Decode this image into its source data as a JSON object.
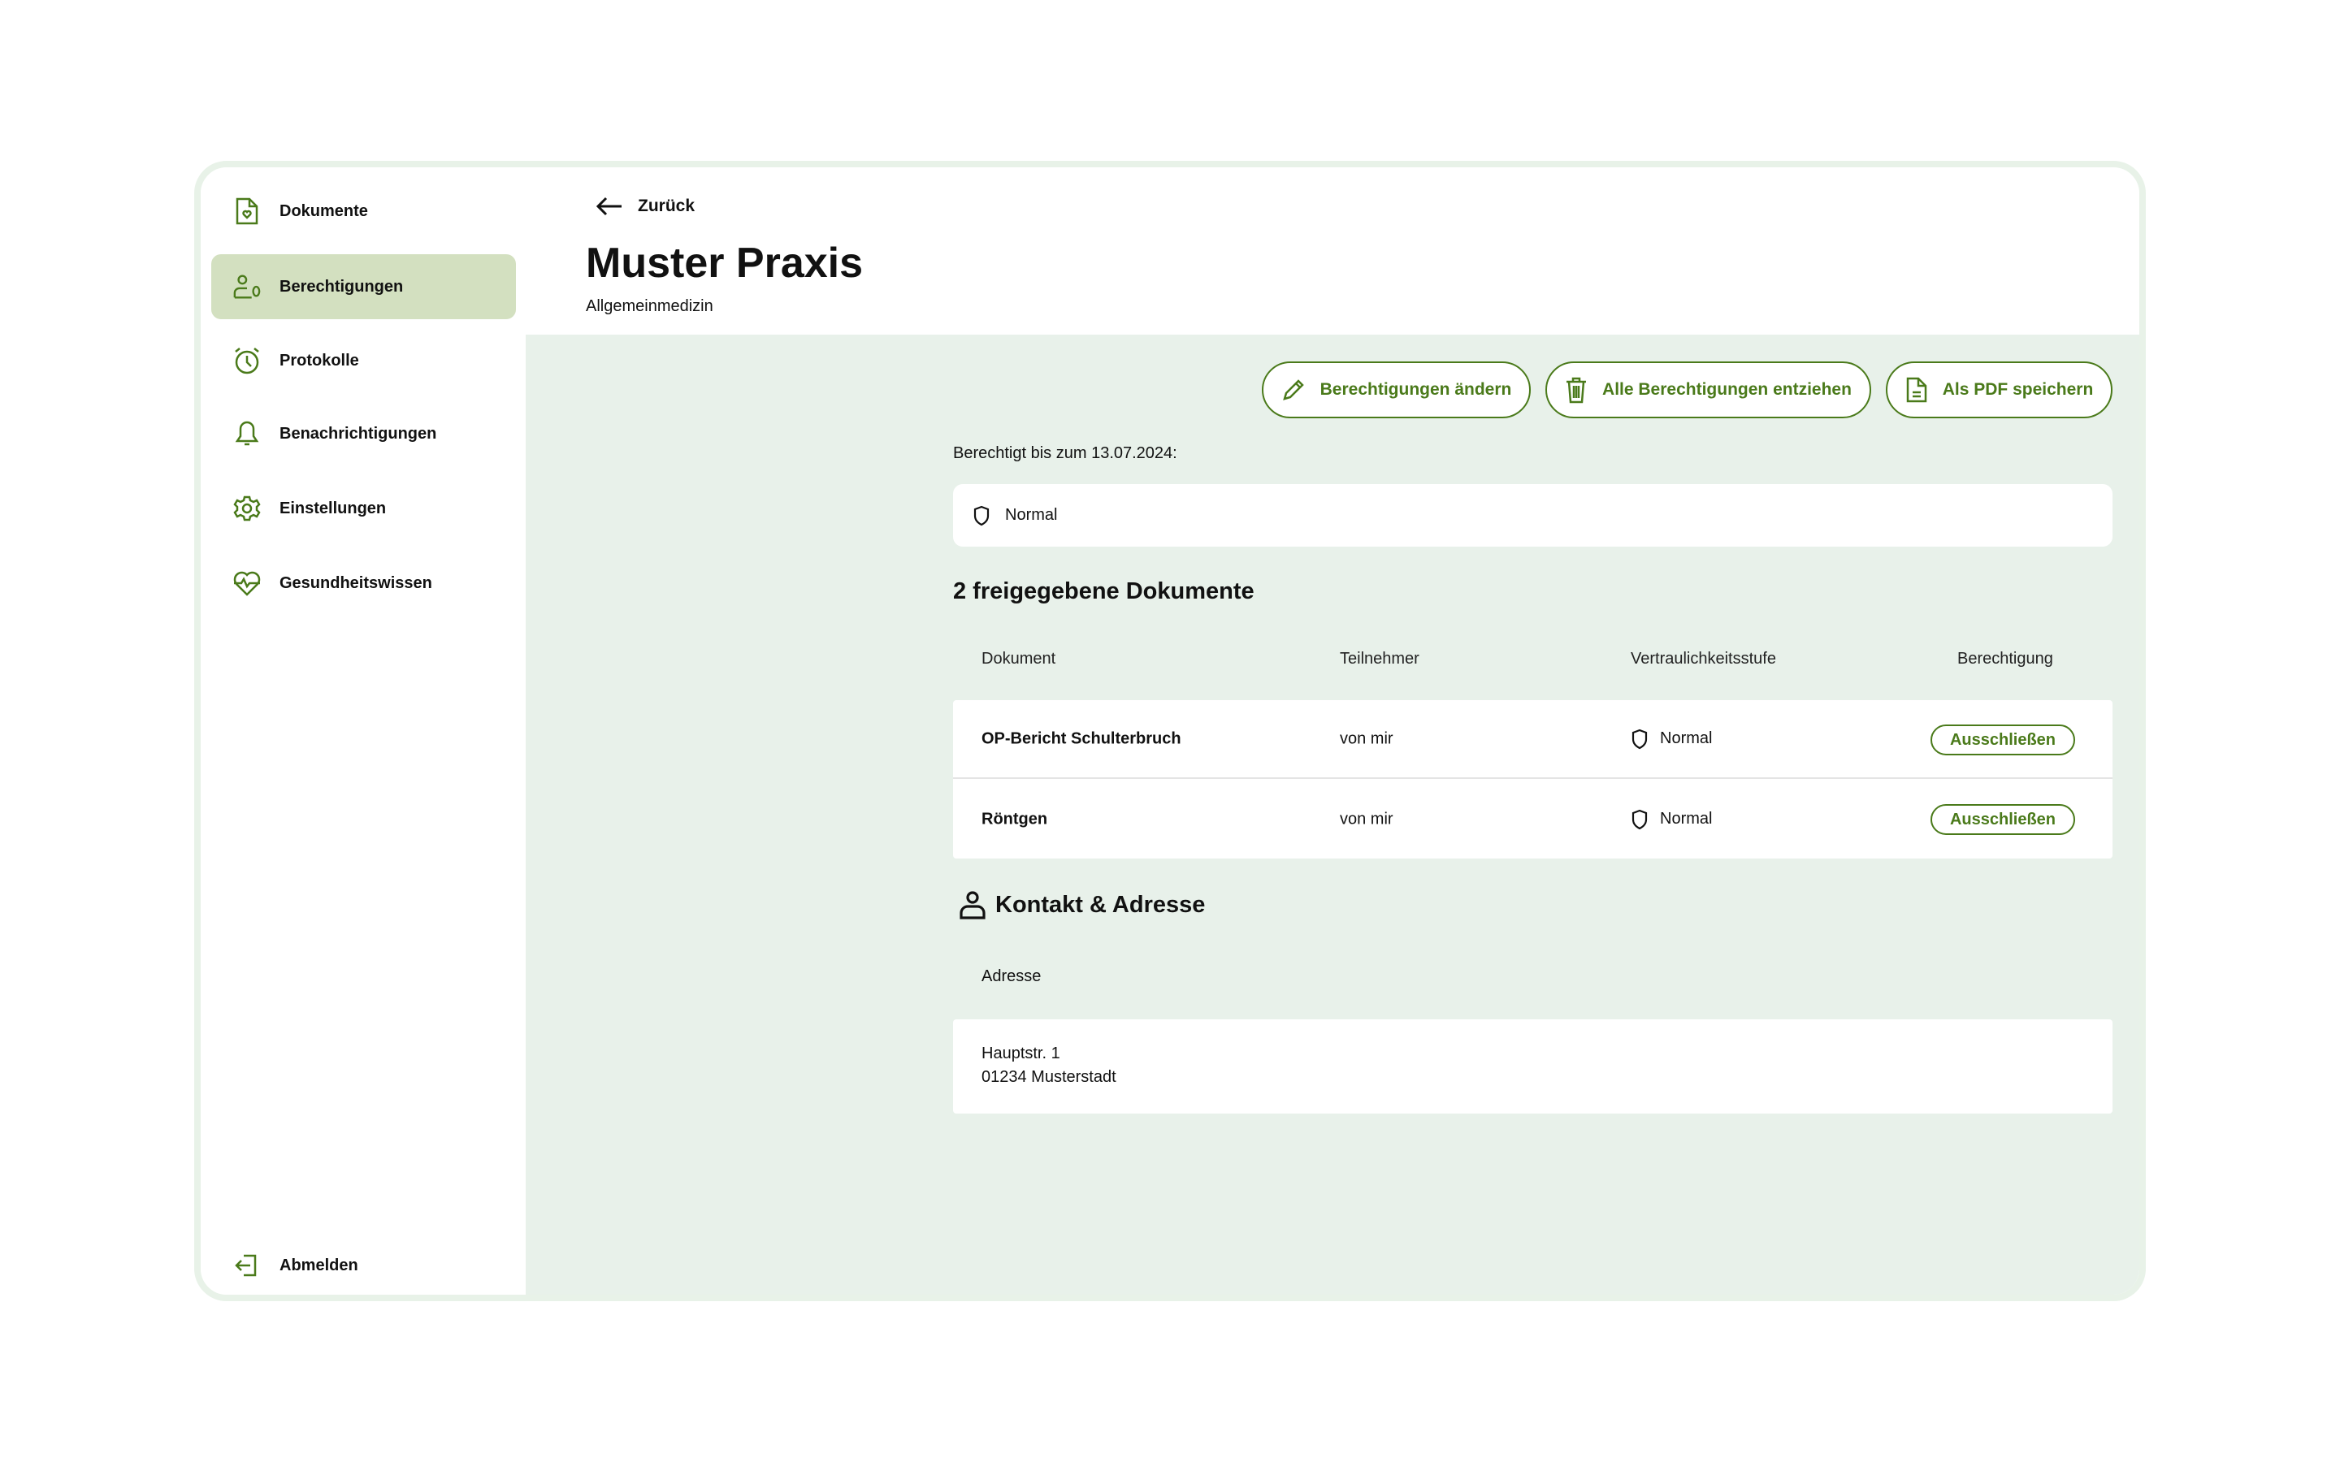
{
  "sidebar": {
    "items": [
      {
        "label": "Dokumente",
        "icon": "document-heart-icon"
      },
      {
        "label": "Berechtigungen",
        "icon": "user-permission-icon",
        "active": true
      },
      {
        "label": "Protokolle",
        "icon": "alarm-clock-icon"
      },
      {
        "label": "Benachrichtigungen",
        "icon": "bell-icon"
      },
      {
        "label": "Einstellungen",
        "icon": "gear-icon"
      },
      {
        "label": "Gesundheitswissen",
        "icon": "heart-pulse-icon"
      }
    ],
    "logout": {
      "label": "Abmelden",
      "icon": "logout-icon"
    }
  },
  "header": {
    "back_label": "Zurück",
    "title": "Muster Praxis",
    "subtitle": "Allgemeinmedizin"
  },
  "actions": {
    "edit": "Berechtigungen ändern",
    "revoke": "Alle Berechtigungen entziehen",
    "pdf": "Als PDF speichern"
  },
  "permission": {
    "valid_until": "Berechtigt bis zum 13.07.2024:",
    "level": "Normal"
  },
  "documents": {
    "heading": "2 freigegebene Dokumente",
    "columns": [
      "Dokument",
      "Teilnehmer",
      "Vertraulichkeitsstufe",
      "Berechtigung"
    ],
    "rows": [
      {
        "name": "OP-Bericht Schulterbruch",
        "participant": "von mir",
        "level": "Normal",
        "action": "Ausschließen"
      },
      {
        "name": "Röntgen",
        "participant": "von mir",
        "level": "Normal",
        "action": "Ausschließen"
      }
    ]
  },
  "contact": {
    "heading": "Kontakt & Adresse",
    "address_label": "Adresse",
    "address_line1": "Hauptstr. 1",
    "address_line2": "01234 Musterstadt"
  },
  "colors": {
    "accent": "#4a7a1a",
    "active_bg": "#d3e0c0",
    "main_bg": "#e8f1ea"
  }
}
